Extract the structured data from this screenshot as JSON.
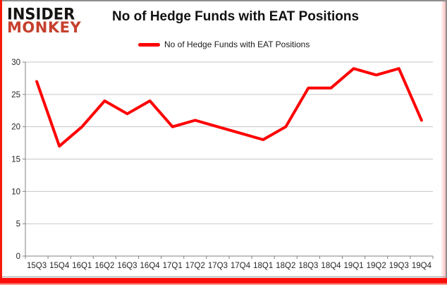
{
  "logo": {
    "line1": "INSIDER",
    "line2": "MONKEY"
  },
  "header": {
    "title": "No of Hedge Funds with EAT Positions"
  },
  "legend": {
    "label": "No of Hedge Funds with EAT Positions",
    "swatch_color": "#fe0000"
  },
  "colors": {
    "series_line": "#fe0000",
    "gridline": "#c6c6c6",
    "axis": "#808080",
    "tick_label": "#262626",
    "frame_red": "#f51a08",
    "frame_grey": "#8f8f8f",
    "logo_red": "#c5402d",
    "logo_black": "#151413"
  },
  "chart_data": {
    "type": "line",
    "title": "No of Hedge Funds with EAT Positions",
    "categories": [
      "15Q3",
      "15Q4",
      "16Q1",
      "16Q2",
      "16Q3",
      "16Q4",
      "17Q1",
      "17Q2",
      "17Q3",
      "17Q4",
      "18Q1",
      "18Q2",
      "18Q3",
      "18Q4",
      "19Q1",
      "19Q2",
      "19Q3",
      "19Q4"
    ],
    "series": [
      {
        "name": "No of Hedge Funds with EAT Positions",
        "color": "#fe0000",
        "values": [
          27,
          17,
          20,
          24,
          22,
          24,
          20,
          21,
          20,
          19,
          18,
          20,
          26,
          26,
          29,
          28,
          29,
          21
        ]
      }
    ],
    "xlabel": "",
    "ylabel": "",
    "ylim": [
      0,
      30
    ],
    "ytick_step": 5,
    "yticks": [
      0,
      5,
      10,
      15,
      20,
      25,
      30
    ],
    "grid": "horizontal",
    "legend_position": "top"
  }
}
